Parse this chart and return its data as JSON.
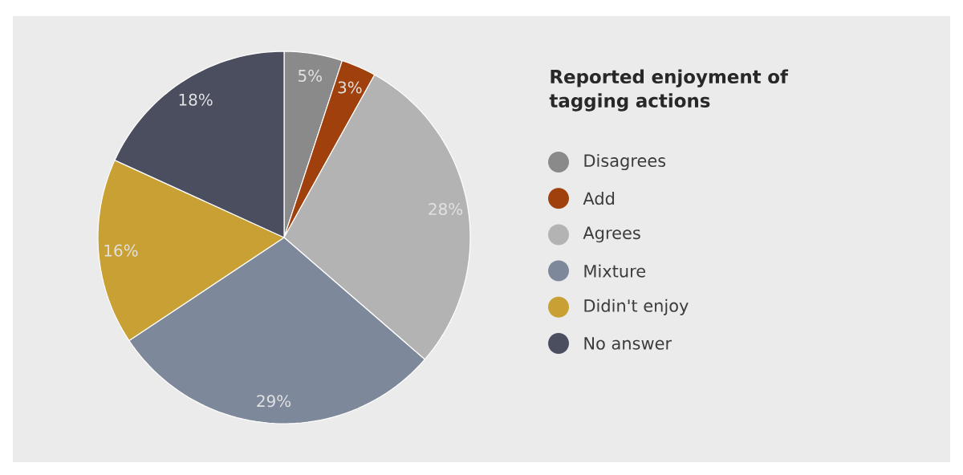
{
  "chart_data": {
    "type": "pie",
    "legend_title": "Reported enjoyment of tagging actions",
    "categories": [
      "Disagrees",
      "Add",
      "Agrees",
      "Mixture",
      "Didin't enjoy",
      "No answer"
    ],
    "values": [
      5,
      3,
      28,
      29,
      16,
      18
    ],
    "value_labels": [
      "5%",
      "3%",
      "28%",
      "29%",
      "16%",
      "18%"
    ],
    "colors": [
      "#8a8a8a",
      "#a0410d",
      "#b3b3b3",
      "#7e889b",
      "#c9a033",
      "#4a4e5e"
    ],
    "legend": "right"
  }
}
